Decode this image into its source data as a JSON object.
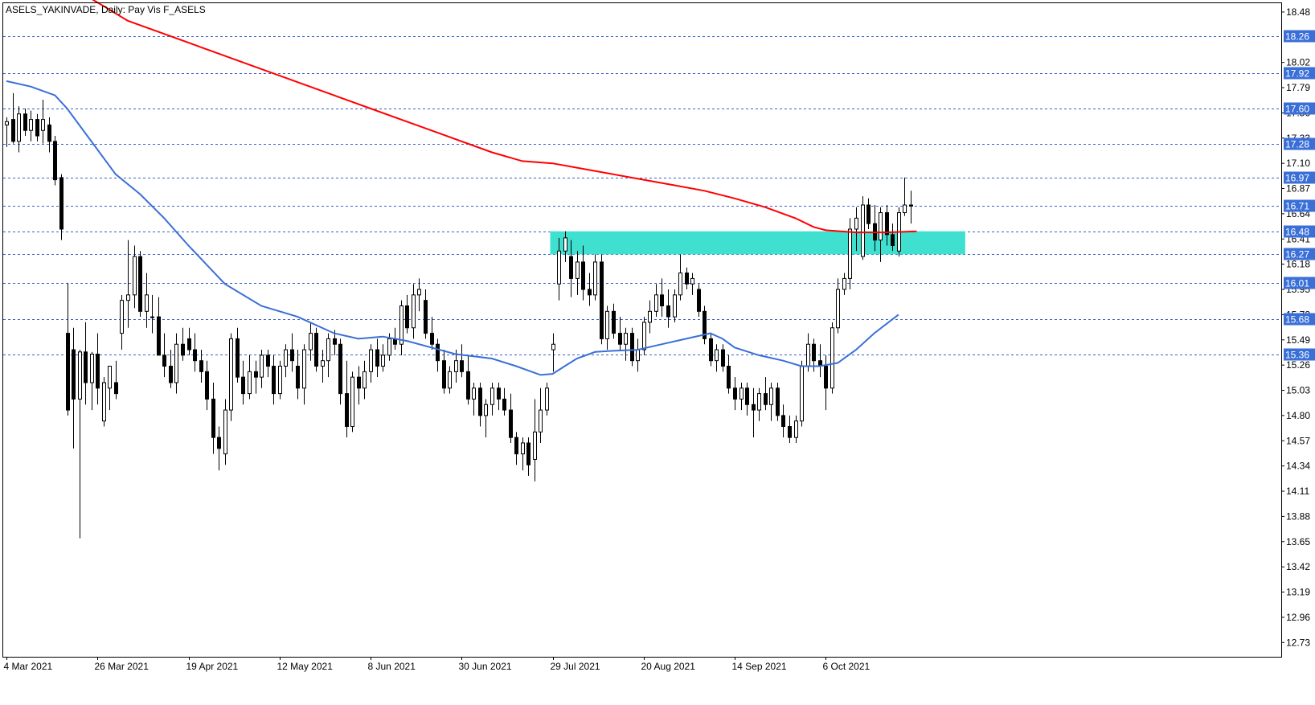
{
  "header": {
    "title": "ASELS_YAKINVADE, Daily:  Pay Vis F_ASELS"
  },
  "colors": {
    "background": "#ffffff",
    "axis": "#000000",
    "candle": "#000000",
    "bull_fill": "#ffffff",
    "bear_fill": "#000000",
    "ma_slow": "#ff0000",
    "ma_fast": "#3a6fd8",
    "level_line": "#3a5fcd",
    "level_label_bg": "#3a6fd8",
    "zone_fill": "#40e0d0"
  },
  "chart_data": {
    "type": "candlestick",
    "y_range": [
      12.6,
      18.56
    ],
    "price_ticks": [
      "18.48",
      "18.02",
      "17.79",
      "17.56",
      "17.33",
      "17.10",
      "16.87",
      "16.64",
      "16.41",
      "16.18",
      "15.95",
      "15.72",
      "15.49",
      "15.26",
      "15.03",
      "14.80",
      "14.57",
      "14.34",
      "14.11",
      "13.88",
      "13.65",
      "13.42",
      "13.19",
      "12.96",
      "12.73"
    ],
    "date_ticks": [
      {
        "label": "4 Mar 2021",
        "index": 0
      },
      {
        "label": "26 Mar 2021",
        "index": 15
      },
      {
        "label": "19 Apr 2021",
        "index": 30
      },
      {
        "label": "12 May 2021",
        "index": 45
      },
      {
        "label": "8 Jun 2021",
        "index": 60
      },
      {
        "label": "30 Jun 2021",
        "index": 75
      },
      {
        "label": "29 Jul 2021",
        "index": 90
      },
      {
        "label": "20 Aug 2021",
        "index": 105
      },
      {
        "label": "14 Sep 2021",
        "index": 120
      },
      {
        "label": "6 Oct 2021",
        "index": 135
      }
    ],
    "horizontal_levels": [
      "18.26",
      "17.92",
      "17.60",
      "17.28",
      "16.97",
      "16.71",
      "16.48",
      "16.27",
      "16.01",
      "15.68",
      "15.36"
    ],
    "zone": {
      "from_index": 90,
      "to_index": 158,
      "low": 16.27,
      "high": 16.48
    },
    "candles": [
      [
        17.45,
        17.52,
        17.25,
        17.48
      ],
      [
        17.5,
        17.74,
        17.28,
        17.3
      ],
      [
        17.3,
        17.62,
        17.2,
        17.55
      ],
      [
        17.55,
        17.6,
        17.35,
        17.4
      ],
      [
        17.4,
        17.58,
        17.3,
        17.5
      ],
      [
        17.5,
        17.55,
        17.3,
        17.35
      ],
      [
        17.4,
        17.68,
        17.28,
        17.5
      ],
      [
        17.45,
        17.52,
        17.2,
        17.3
      ],
      [
        17.3,
        17.35,
        16.9,
        16.95
      ],
      [
        16.97,
        17.0,
        16.4,
        16.5
      ],
      [
        15.55,
        16.01,
        14.8,
        14.85
      ],
      [
        15.4,
        15.6,
        14.5,
        14.95
      ],
      [
        14.95,
        15.4,
        13.68,
        15.38
      ],
      [
        15.38,
        15.65,
        14.9,
        15.1
      ],
      [
        15.1,
        15.38,
        14.85,
        15.36
      ],
      [
        15.36,
        15.55,
        14.9,
        15.05
      ],
      [
        14.75,
        15.15,
        14.7,
        15.1
      ],
      [
        15.05,
        15.2,
        14.85,
        15.25
      ],
      [
        15.1,
        15.3,
        14.95,
        15.0
      ],
      [
        15.55,
        15.9,
        15.4,
        15.85
      ],
      [
        15.85,
        16.4,
        15.6,
        15.9
      ],
      [
        15.9,
        16.35,
        15.78,
        16.25
      ],
      [
        16.25,
        16.3,
        15.7,
        15.75
      ],
      [
        15.75,
        16.1,
        15.6,
        15.9
      ],
      [
        15.7,
        15.9,
        15.55,
        15.7
      ],
      [
        15.7,
        15.88,
        15.35,
        15.35
      ],
      [
        15.35,
        15.55,
        15.15,
        15.25
      ],
      [
        15.25,
        15.4,
        15.05,
        15.1
      ],
      [
        15.1,
        15.55,
        15.0,
        15.45
      ],
      [
        15.45,
        15.6,
        15.3,
        15.35
      ],
      [
        15.5,
        15.6,
        15.35,
        15.4
      ],
      [
        15.4,
        15.55,
        15.2,
        15.3
      ],
      [
        15.3,
        15.4,
        15.1,
        15.2
      ],
      [
        15.2,
        15.3,
        14.85,
        14.95
      ],
      [
        14.95,
        15.1,
        14.45,
        14.6
      ],
      [
        14.6,
        14.7,
        14.3,
        14.5
      ],
      [
        14.45,
        14.95,
        14.35,
        14.85
      ],
      [
        14.85,
        15.55,
        14.75,
        15.5
      ],
      [
        15.5,
        15.6,
        15.1,
        15.15
      ],
      [
        15.15,
        15.3,
        14.9,
        15.0
      ],
      [
        15.0,
        15.35,
        14.95,
        15.2
      ],
      [
        15.2,
        15.3,
        15.0,
        15.15
      ],
      [
        15.15,
        15.4,
        15.05,
        15.35
      ],
      [
        15.35,
        15.4,
        15.15,
        15.25
      ],
      [
        15.25,
        15.35,
        14.9,
        15.0
      ],
      [
        15.0,
        15.3,
        14.95,
        15.25
      ],
      [
        15.25,
        15.45,
        15.15,
        15.4
      ],
      [
        15.4,
        15.55,
        15.2,
        15.3
      ],
      [
        15.25,
        15.4,
        14.95,
        15.05
      ],
      [
        15.05,
        15.45,
        14.9,
        15.4
      ],
      [
        15.4,
        15.65,
        15.3,
        15.55
      ],
      [
        15.55,
        15.6,
        15.2,
        15.25
      ],
      [
        15.25,
        15.4,
        15.1,
        15.3
      ],
      [
        15.3,
        15.55,
        15.15,
        15.5
      ],
      [
        15.5,
        15.58,
        15.35,
        15.45
      ],
      [
        15.45,
        15.5,
        14.9,
        15.0
      ],
      [
        15.0,
        15.3,
        14.6,
        14.7
      ],
      [
        14.7,
        15.2,
        14.65,
        15.15
      ],
      [
        15.15,
        15.25,
        14.9,
        15.05
      ],
      [
        15.05,
        15.3,
        14.95,
        15.2
      ],
      [
        15.2,
        15.45,
        15.1,
        15.4
      ],
      [
        15.4,
        15.5,
        15.15,
        15.25
      ],
      [
        15.25,
        15.45,
        15.2,
        15.35
      ],
      [
        15.35,
        15.55,
        15.3,
        15.5
      ],
      [
        15.5,
        15.6,
        15.4,
        15.45
      ],
      [
        15.45,
        15.85,
        15.35,
        15.8
      ],
      [
        15.8,
        15.9,
        15.55,
        15.6
      ],
      [
        15.6,
        16.0,
        15.5,
        15.9
      ],
      [
        15.9,
        16.05,
        15.75,
        15.95
      ],
      [
        15.85,
        15.95,
        15.5,
        15.55
      ],
      [
        15.55,
        15.7,
        15.4,
        15.45
      ],
      [
        15.45,
        15.5,
        15.2,
        15.3
      ],
      [
        15.3,
        15.4,
        15.0,
        15.05
      ],
      [
        15.05,
        15.25,
        15.0,
        15.2
      ],
      [
        15.2,
        15.4,
        15.1,
        15.3
      ],
      [
        15.3,
        15.45,
        15.15,
        15.2
      ],
      [
        15.2,
        15.35,
        14.9,
        14.95
      ],
      [
        14.95,
        15.1,
        14.8,
        15.05
      ],
      [
        15.05,
        15.1,
        14.7,
        14.8
      ],
      [
        14.8,
        14.95,
        14.6,
        14.9
      ],
      [
        14.9,
        15.1,
        14.8,
        15.05
      ],
      [
        15.05,
        15.1,
        14.85,
        14.95
      ],
      [
        14.95,
        15.05,
        14.8,
        14.85
      ],
      [
        14.85,
        15.0,
        14.55,
        14.6
      ],
      [
        14.6,
        14.65,
        14.35,
        14.45
      ],
      [
        14.45,
        14.6,
        14.3,
        14.55
      ],
      [
        14.55,
        14.6,
        14.25,
        14.35
      ],
      [
        14.4,
        14.95,
        14.2,
        14.65
      ],
      [
        14.65,
        15.05,
        14.55,
        14.85
      ],
      [
        14.85,
        15.1,
        14.8,
        15.05
      ],
      [
        15.4,
        15.55,
        15.2,
        15.45
      ],
      [
        16.0,
        16.42,
        15.85,
        16.3
      ],
      [
        16.3,
        16.48,
        16.2,
        16.42
      ],
      [
        16.25,
        16.4,
        15.88,
        16.05
      ],
      [
        16.05,
        16.3,
        15.9,
        16.2
      ],
      [
        16.2,
        16.35,
        15.85,
        15.95
      ],
      [
        15.95,
        16.1,
        15.8,
        15.9
      ],
      [
        15.9,
        16.27,
        15.85,
        16.2
      ],
      [
        16.2,
        16.27,
        15.45,
        15.5
      ],
      [
        15.5,
        15.8,
        15.4,
        15.75
      ],
      [
        15.75,
        15.82,
        15.5,
        15.55
      ],
      [
        15.55,
        15.7,
        15.4,
        15.45
      ],
      [
        15.45,
        15.6,
        15.3,
        15.55
      ],
      [
        15.55,
        15.6,
        15.25,
        15.3
      ],
      [
        15.3,
        15.5,
        15.2,
        15.4
      ],
      [
        15.4,
        15.7,
        15.35,
        15.65
      ],
      [
        15.65,
        15.85,
        15.55,
        15.75
      ],
      [
        15.75,
        16.0,
        15.7,
        15.9
      ],
      [
        15.9,
        16.05,
        15.7,
        15.8
      ],
      [
        15.8,
        15.95,
        15.6,
        15.7
      ],
      [
        15.7,
        15.95,
        15.65,
        15.9
      ],
      [
        15.9,
        16.27,
        15.85,
        16.1
      ],
      [
        16.1,
        16.15,
        15.95,
        16.0
      ],
      [
        16.0,
        16.1,
        15.9,
        16.05
      ],
      [
        15.95,
        16.0,
        15.7,
        15.75
      ],
      [
        15.75,
        15.8,
        15.45,
        15.5
      ],
      [
        15.5,
        15.55,
        15.25,
        15.3
      ],
      [
        15.3,
        15.45,
        15.2,
        15.4
      ],
      [
        15.4,
        15.45,
        15.2,
        15.25
      ],
      [
        15.25,
        15.35,
        15.0,
        15.05
      ],
      [
        15.05,
        15.15,
        14.85,
        14.95
      ],
      [
        14.95,
        15.1,
        14.85,
        15.05
      ],
      [
        15.05,
        15.1,
        14.8,
        14.9
      ],
      [
        14.9,
        15.05,
        14.6,
        14.85
      ],
      [
        14.85,
        15.05,
        14.75,
        15.0
      ],
      [
        15.0,
        15.15,
        14.85,
        14.9
      ],
      [
        14.9,
        15.1,
        14.75,
        15.05
      ],
      [
        15.05,
        15.1,
        14.75,
        14.8
      ],
      [
        14.8,
        14.9,
        14.6,
        14.7
      ],
      [
        14.7,
        14.8,
        14.55,
        14.6
      ],
      [
        14.6,
        14.8,
        14.55,
        14.75
      ],
      [
        14.75,
        15.3,
        14.7,
        15.25
      ],
      [
        15.25,
        15.55,
        15.2,
        15.45
      ],
      [
        15.45,
        15.5,
        15.2,
        15.3
      ],
      [
        15.3,
        15.45,
        15.15,
        15.25
      ],
      [
        15.25,
        15.35,
        14.85,
        15.05
      ],
      [
        15.05,
        15.65,
        15.0,
        15.6
      ],
      [
        15.6,
        16.05,
        15.55,
        15.95
      ],
      [
        15.95,
        16.1,
        15.9,
        16.05
      ],
      [
        16.05,
        16.6,
        15.95,
        16.5
      ],
      [
        16.5,
        16.7,
        16.3,
        16.6
      ],
      [
        16.25,
        16.8,
        16.22,
        16.72
      ],
      [
        16.72,
        16.78,
        16.5,
        16.55
      ],
      [
        16.55,
        16.72,
        16.3,
        16.4
      ],
      [
        16.4,
        16.7,
        16.2,
        16.65
      ],
      [
        16.65,
        16.72,
        16.35,
        16.45
      ],
      [
        16.45,
        16.55,
        16.3,
        16.35
      ],
      [
        16.3,
        16.7,
        16.25,
        16.65
      ],
      [
        16.65,
        16.97,
        16.62,
        16.72
      ],
      [
        16.72,
        16.85,
        16.55,
        16.71
      ]
    ],
    "ma_slow": [
      [
        14,
        18.6
      ],
      [
        20,
        18.4
      ],
      [
        30,
        18.2
      ],
      [
        40,
        18.0
      ],
      [
        50,
        17.8
      ],
      [
        60,
        17.6
      ],
      [
        70,
        17.4
      ],
      [
        80,
        17.2
      ],
      [
        85,
        17.12
      ],
      [
        90,
        17.1
      ],
      [
        95,
        17.05
      ],
      [
        100,
        17.0
      ],
      [
        105,
        16.95
      ],
      [
        110,
        16.9
      ],
      [
        115,
        16.85
      ],
      [
        120,
        16.78
      ],
      [
        125,
        16.7
      ],
      [
        130,
        16.6
      ],
      [
        133,
        16.52
      ],
      [
        135,
        16.49
      ],
      [
        140,
        16.47
      ],
      [
        145,
        16.47
      ],
      [
        150,
        16.48
      ]
    ],
    "ma_fast": [
      [
        0,
        17.85
      ],
      [
        4,
        17.8
      ],
      [
        8,
        17.72
      ],
      [
        10,
        17.6
      ],
      [
        14,
        17.3
      ],
      [
        18,
        17.0
      ],
      [
        22,
        16.82
      ],
      [
        26,
        16.6
      ],
      [
        30,
        16.35
      ],
      [
        36,
        16.0
      ],
      [
        42,
        15.8
      ],
      [
        48,
        15.7
      ],
      [
        54,
        15.55
      ],
      [
        58,
        15.5
      ],
      [
        62,
        15.52
      ],
      [
        66,
        15.48
      ],
      [
        70,
        15.42
      ],
      [
        74,
        15.36
      ],
      [
        80,
        15.32
      ],
      [
        84,
        15.25
      ],
      [
        88,
        15.17
      ],
      [
        90,
        15.18
      ],
      [
        92,
        15.25
      ],
      [
        94,
        15.32
      ],
      [
        97,
        15.38
      ],
      [
        100,
        15.39
      ],
      [
        104,
        15.4
      ],
      [
        108,
        15.45
      ],
      [
        112,
        15.5
      ],
      [
        116,
        15.55
      ],
      [
        118,
        15.5
      ],
      [
        120,
        15.42
      ],
      [
        124,
        15.35
      ],
      [
        128,
        15.3
      ],
      [
        131,
        15.25
      ],
      [
        134,
        15.25
      ],
      [
        137,
        15.28
      ],
      [
        140,
        15.4
      ],
      [
        143,
        15.55
      ],
      [
        147,
        15.72
      ]
    ]
  }
}
